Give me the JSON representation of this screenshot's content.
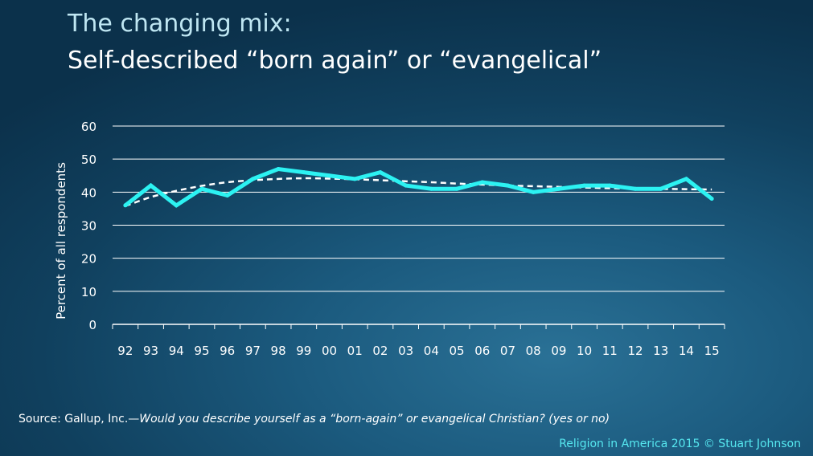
{
  "slide": {
    "title_line1": "The changing mix:",
    "title_line2": "Self-described “born again” or “evangelical”",
    "source_label": "Source: Gallup, Inc.—",
    "source_question": "Would you describe yourself as a “born-again” or evangelical Christian? (yes or no)",
    "credit": "Religion in America 2015 © Stuart Johnson"
  },
  "colors": {
    "series": "#2cf2f2",
    "trendline": "#ffffff",
    "gridline": "#ffffff"
  },
  "chart_data": {
    "type": "line",
    "title": "",
    "xlabel": "",
    "ylabel": "Percent of all respondents",
    "ylim": [
      0,
      60
    ],
    "yticks": [
      0,
      10,
      20,
      30,
      40,
      50,
      60
    ],
    "grid": true,
    "categories": [
      "92",
      "93",
      "94",
      "95",
      "96",
      "97",
      "98",
      "99",
      "00",
      "01",
      "02",
      "03",
      "04",
      "05",
      "06",
      "07",
      "08",
      "09",
      "10",
      "11",
      "12",
      "13",
      "14",
      "15"
    ],
    "series": [
      {
        "values": [
          36,
          42,
          36,
          41,
          39,
          44,
          47,
          46,
          45,
          44,
          46,
          42,
          41,
          41,
          43,
          42,
          40,
          41,
          42,
          42,
          41,
          41,
          44,
          38
        ]
      }
    ],
    "trendline": {
      "style": "dashed",
      "values": [
        35.8,
        38.5,
        40.4,
        41.9,
        43.0,
        43.6,
        44.0,
        44.2,
        44.1,
        43.9,
        43.6,
        43.3,
        43.0,
        42.6,
        42.3,
        42.0,
        41.8,
        41.6,
        41.4,
        41.2,
        41.1,
        41.0,
        40.9,
        40.8
      ]
    }
  }
}
